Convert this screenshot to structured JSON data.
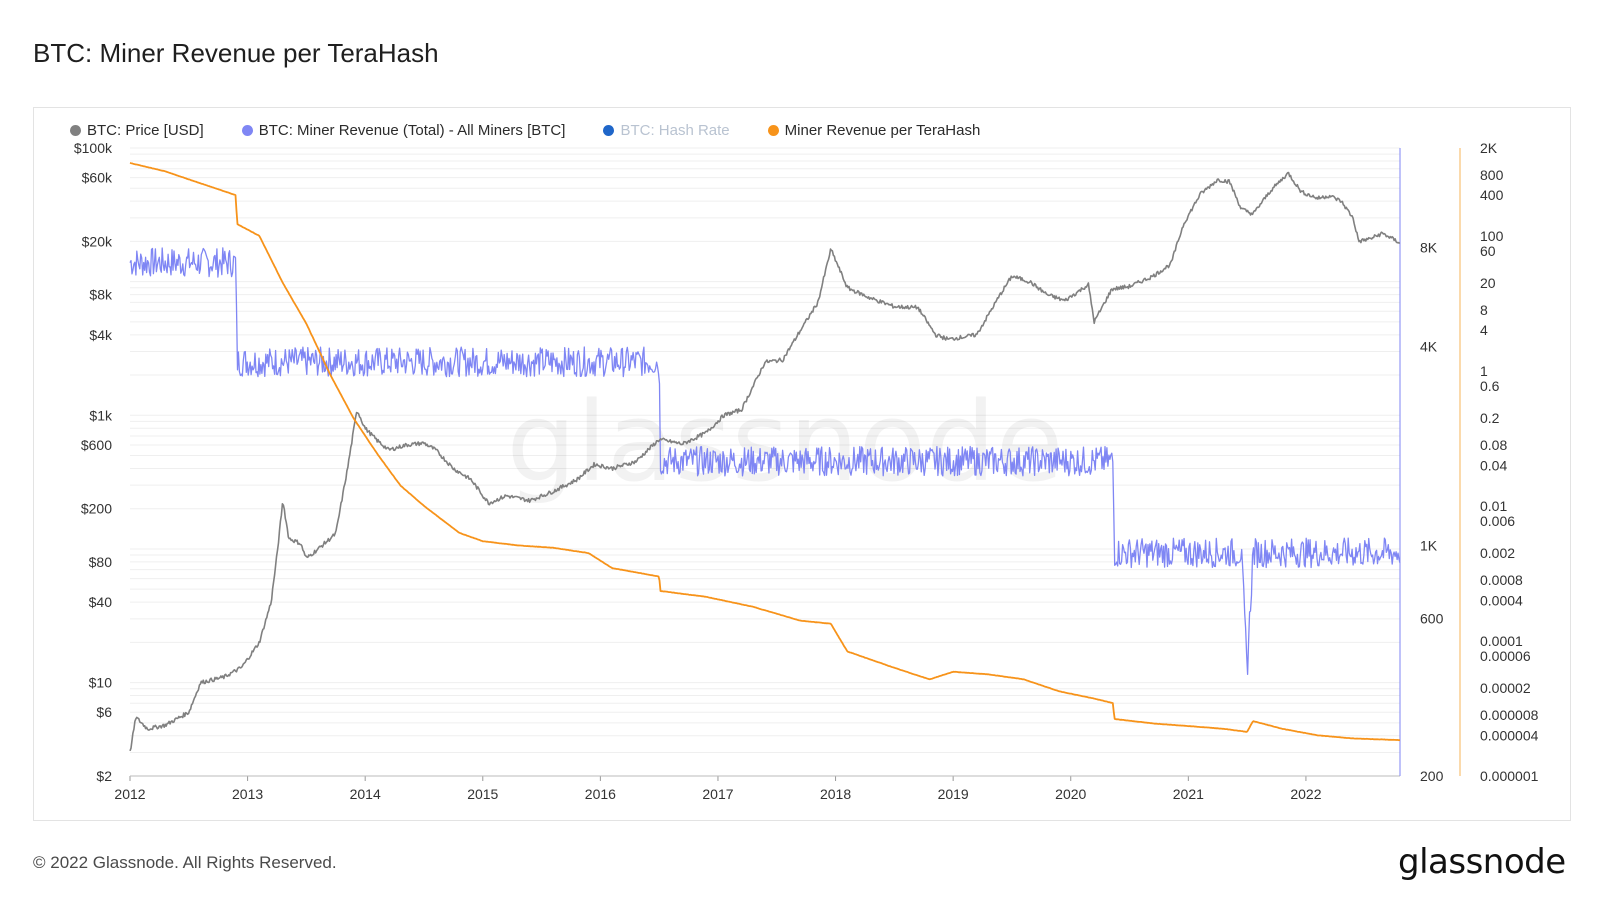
{
  "header": {
    "title": "BTC: Miner Revenue per TeraHash"
  },
  "footer": {
    "copyright": "© 2022 Glassnode. All Rights Reserved.",
    "logo_text": "glassnode"
  },
  "watermark": "glassnode",
  "legend": [
    {
      "label": "BTC: Price [USD]",
      "color": "#808080",
      "muted": false
    },
    {
      "label": "BTC: Miner Revenue (Total) - All Miners [BTC]",
      "color": "#7f86f4",
      "muted": false
    },
    {
      "label": "BTC: Hash Rate",
      "color": "#1f66c9",
      "muted": true
    },
    {
      "label": "Miner Revenue per TeraHash",
      "color": "#f7931a",
      "muted": false
    }
  ],
  "chart_data": {
    "type": "line",
    "title": "BTC: Miner Revenue per TeraHash",
    "x_ticks": [
      "2012",
      "2013",
      "2014",
      "2015",
      "2016",
      "2017",
      "2018",
      "2019",
      "2020",
      "2021",
      "2022"
    ],
    "x_range": [
      2012.0,
      2022.8
    ],
    "axes": {
      "price_usd": {
        "scale": "log",
        "range": [
          2,
          100000
        ],
        "ticks": [
          {
            "value": 100000,
            "label": "$100k"
          },
          {
            "value": 60000,
            "label": "$60k"
          },
          {
            "value": 20000,
            "label": "$20k"
          },
          {
            "value": 8000,
            "label": "$8k"
          },
          {
            "value": 4000,
            "label": "$4k"
          },
          {
            "value": 1000,
            "label": "$1k"
          },
          {
            "value": 600,
            "label": "$600"
          },
          {
            "value": 200,
            "label": "$200"
          },
          {
            "value": 80,
            "label": "$80"
          },
          {
            "value": 40,
            "label": "$40"
          },
          {
            "value": 10,
            "label": "$10"
          },
          {
            "value": 6,
            "label": "$6"
          },
          {
            "value": 2,
            "label": "$2"
          }
        ]
      },
      "revenue_btc": {
        "scale": "log",
        "range": [
          200,
          16000
        ],
        "ticks": [
          {
            "value": 8000,
            "label": "8K"
          },
          {
            "value": 4000,
            "label": "4K"
          },
          {
            "value": 1000,
            "label": "1K"
          },
          {
            "value": 600,
            "label": "600"
          },
          {
            "value": 200,
            "label": "200"
          }
        ]
      },
      "revenue_per_th": {
        "scale": "log",
        "range": [
          1e-06,
          2000
        ],
        "ticks": [
          {
            "value": 2000,
            "label": "2K"
          },
          {
            "value": 800,
            "label": "800"
          },
          {
            "value": 400,
            "label": "400"
          },
          {
            "value": 100,
            "label": "100"
          },
          {
            "value": 60,
            "label": "60"
          },
          {
            "value": 20,
            "label": "20"
          },
          {
            "value": 8,
            "label": "8"
          },
          {
            "value": 4,
            "label": "4"
          },
          {
            "value": 1,
            "label": "1"
          },
          {
            "value": 0.6,
            "label": "0.6"
          },
          {
            "value": 0.2,
            "label": "0.2"
          },
          {
            "value": 0.08,
            "label": "0.08"
          },
          {
            "value": 0.04,
            "label": "0.04"
          },
          {
            "value": 0.01,
            "label": "0.01"
          },
          {
            "value": 0.006,
            "label": "0.006"
          },
          {
            "value": 0.002,
            "label": "0.002"
          },
          {
            "value": 0.0008,
            "label": "0.0008"
          },
          {
            "value": 0.0004,
            "label": "0.0004"
          },
          {
            "value": 0.0001,
            "label": "0.0001"
          },
          {
            "value": 6e-05,
            "label": "0.00006"
          },
          {
            "value": 2e-05,
            "label": "0.00002"
          },
          {
            "value": 8e-06,
            "label": "0.000008"
          },
          {
            "value": 4e-06,
            "label": "0.000004"
          },
          {
            "value": 1e-06,
            "label": "0.000001"
          }
        ]
      }
    },
    "series": [
      {
        "name": "BTC: Price [USD]",
        "axis": "price_usd",
        "color": "#808080",
        "points": [
          [
            2012.0,
            3.0
          ],
          [
            2012.05,
            5.5
          ],
          [
            2012.15,
            4.5
          ],
          [
            2012.3,
            4.8
          ],
          [
            2012.5,
            6.0
          ],
          [
            2012.6,
            10
          ],
          [
            2012.8,
            11
          ],
          [
            2012.95,
            13
          ],
          [
            2013.1,
            20
          ],
          [
            2013.2,
            40
          ],
          [
            2013.25,
            90
          ],
          [
            2013.3,
            230
          ],
          [
            2013.35,
            120
          ],
          [
            2013.45,
            110
          ],
          [
            2013.5,
            85
          ],
          [
            2013.6,
            100
          ],
          [
            2013.75,
            130
          ],
          [
            2013.85,
            400
          ],
          [
            2013.93,
            1100
          ],
          [
            2014.0,
            800
          ],
          [
            2014.1,
            650
          ],
          [
            2014.2,
            550
          ],
          [
            2014.35,
            600
          ],
          [
            2014.5,
            620
          ],
          [
            2014.6,
            550
          ],
          [
            2014.75,
            400
          ],
          [
            2014.9,
            330
          ],
          [
            2015.05,
            220
          ],
          [
            2015.2,
            250
          ],
          [
            2015.4,
            230
          ],
          [
            2015.6,
            270
          ],
          [
            2015.8,
            330
          ],
          [
            2015.95,
            430
          ],
          [
            2016.1,
            400
          ],
          [
            2016.3,
            450
          ],
          [
            2016.5,
            660
          ],
          [
            2016.7,
            610
          ],
          [
            2016.9,
            740
          ],
          [
            2017.05,
            1000
          ],
          [
            2017.2,
            1100
          ],
          [
            2017.4,
            2500
          ],
          [
            2017.55,
            2600
          ],
          [
            2017.7,
            4300
          ],
          [
            2017.85,
            7000
          ],
          [
            2017.96,
            17500
          ],
          [
            2018.1,
            9000
          ],
          [
            2018.3,
            7500
          ],
          [
            2018.5,
            6500
          ],
          [
            2018.7,
            6400
          ],
          [
            2018.85,
            4000
          ],
          [
            2018.96,
            3700
          ],
          [
            2019.2,
            4000
          ],
          [
            2019.4,
            8000
          ],
          [
            2019.5,
            11000
          ],
          [
            2019.65,
            10000
          ],
          [
            2019.8,
            8000
          ],
          [
            2019.95,
            7200
          ],
          [
            2020.15,
            9500
          ],
          [
            2020.2,
            5000
          ],
          [
            2020.35,
            8800
          ],
          [
            2020.5,
            9200
          ],
          [
            2020.7,
            11000
          ],
          [
            2020.85,
            13500
          ],
          [
            2020.96,
            27000
          ],
          [
            2021.1,
            45000
          ],
          [
            2021.25,
            58000
          ],
          [
            2021.35,
            56000
          ],
          [
            2021.45,
            35000
          ],
          [
            2021.55,
            32000
          ],
          [
            2021.7,
            48000
          ],
          [
            2021.85,
            65000
          ],
          [
            2021.96,
            47000
          ],
          [
            2022.1,
            42000
          ],
          [
            2022.2,
            44000
          ],
          [
            2022.3,
            40000
          ],
          [
            2022.4,
            30000
          ],
          [
            2022.45,
            20000
          ],
          [
            2022.55,
            21000
          ],
          [
            2022.65,
            23000
          ],
          [
            2022.8,
            19500
          ]
        ]
      },
      {
        "name": "BTC: Miner Revenue (Total) - All Miners [BTC]",
        "axis": "revenue_btc",
        "color": "#7f86f4",
        "points": [
          [
            2012.0,
            7200
          ],
          [
            2012.9,
            7200
          ],
          [
            2012.91,
            3600
          ],
          [
            2016.5,
            3600
          ],
          [
            2016.51,
            1800
          ],
          [
            2020.36,
            1800
          ],
          [
            2020.37,
            950
          ],
          [
            2021.45,
            950
          ],
          [
            2021.5,
            420
          ],
          [
            2021.55,
            950
          ],
          [
            2022.8,
            950
          ]
        ]
      },
      {
        "name": "Miner Revenue per TeraHash",
        "axis": "revenue_per_th",
        "color": "#f7931a",
        "points": [
          [
            2012.0,
            1200
          ],
          [
            2012.3,
            900
          ],
          [
            2012.6,
            600
          ],
          [
            2012.9,
            400
          ],
          [
            2012.91,
            150
          ],
          [
            2013.1,
            100
          ],
          [
            2013.3,
            20
          ],
          [
            2013.5,
            5
          ],
          [
            2013.7,
            0.9
          ],
          [
            2013.9,
            0.2
          ],
          [
            2014.1,
            0.06
          ],
          [
            2014.3,
            0.02
          ],
          [
            2014.5,
            0.01
          ],
          [
            2014.8,
            0.004
          ],
          [
            2015.0,
            0.003
          ],
          [
            2015.3,
            0.0026
          ],
          [
            2015.6,
            0.0024
          ],
          [
            2015.9,
            0.002
          ],
          [
            2016.1,
            0.0012
          ],
          [
            2016.5,
            0.0009
          ],
          [
            2016.51,
            0.00055
          ],
          [
            2016.9,
            0.00045
          ],
          [
            2017.3,
            0.00032
          ],
          [
            2017.7,
            0.0002
          ],
          [
            2017.96,
            0.00018
          ],
          [
            2018.1,
            7e-05
          ],
          [
            2018.5,
            4e-05
          ],
          [
            2018.8,
            2.7e-05
          ],
          [
            2019.0,
            3.5e-05
          ],
          [
            2019.3,
            3.2e-05
          ],
          [
            2019.6,
            2.7e-05
          ],
          [
            2019.9,
            1.8e-05
          ],
          [
            2020.2,
            1.4e-05
          ],
          [
            2020.36,
            1.2e-05
          ],
          [
            2020.37,
            7e-06
          ],
          [
            2020.7,
            6e-06
          ],
          [
            2021.0,
            5.5e-06
          ],
          [
            2021.3,
            5e-06
          ],
          [
            2021.5,
            4.5e-06
          ],
          [
            2021.55,
            6.5e-06
          ],
          [
            2021.8,
            5e-06
          ],
          [
            2022.1,
            4e-06
          ],
          [
            2022.4,
            3.6e-06
          ],
          [
            2022.8,
            3.4e-06
          ]
        ]
      }
    ],
    "legend_position": "top-left",
    "grid": true
  }
}
